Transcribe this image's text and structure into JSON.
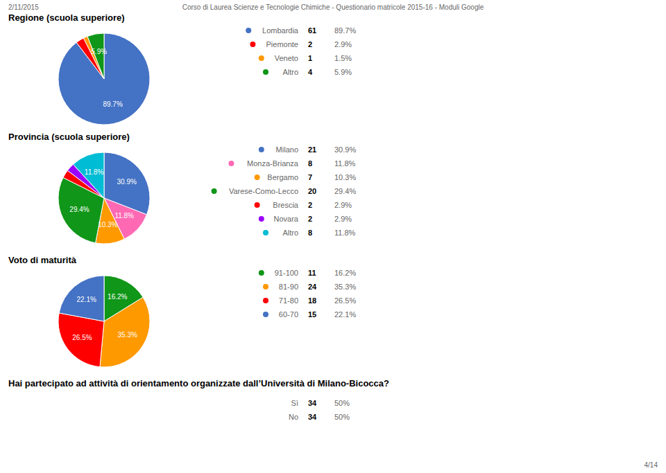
{
  "annotations": [
    "2/11/2015",
    "Corso di Laurea Scienze e Tecnologie Chimiche - Questionario matricole 2015-16 - Moduli Google",
    "4/14"
  ],
  "chart_data": [
    {
      "type": "pie",
      "title": "Regione (scuola superiore)",
      "categories": [
        "Lombardia",
        "Piemonte",
        "Veneto",
        "Altro"
      ],
      "values": [
        89.7,
        2.9,
        1.5,
        5.9
      ],
      "value_labels": [
        "89.7%",
        "2.9%",
        "1.5%",
        "5.9%"
      ],
      "counts": [
        61,
        2,
        1,
        4
      ],
      "colors": [
        "#4472c4",
        "#ff0000",
        "#ff9900",
        "#109618"
      ],
      "data_labels": true
    },
    {
      "type": "pie",
      "title": "Provincia (scuola superiore)",
      "categories": [
        "Milano",
        "Monza-Brianza",
        "Bergamo",
        "Varese-Como-Lecco",
        "Brescia",
        "Novara",
        "Altro"
      ],
      "values": [
        30.9,
        11.8,
        10.3,
        29.4,
        2.9,
        2.9,
        11.8
      ],
      "value_labels": [
        "30.9%",
        "11.8%",
        "10.3%",
        "29.4%",
        "2.9%",
        "2.9%",
        "11.8%"
      ],
      "counts": [
        21,
        8,
        7,
        20,
        2,
        2,
        8
      ],
      "colors": [
        "#4472c4",
        "#ff69b4",
        "#ff9900",
        "#109618",
        "#ff0000",
        "#9900ff",
        "#00bcd4"
      ],
      "data_labels": true
    },
    {
      "type": "pie",
      "title": "Voto di maturità",
      "categories": [
        "91-100",
        "81-90",
        "71-80",
        "60-70"
      ],
      "values": [
        16.2,
        35.3,
        26.5,
        22.1
      ],
      "value_labels": [
        "16.2%",
        "35.3%",
        "26.5%",
        "22.1%"
      ],
      "counts": [
        11,
        24,
        18,
        15
      ],
      "colors": [
        "#109618",
        "#ff9900",
        "#ff0000",
        "#4472c4"
      ],
      "data_labels": true
    },
    {
      "type": "table",
      "title": "Hai partecipato ad attività di orientamento organizzate dall’Università di Milano-Bicocca?",
      "categories": [
        "Sì",
        "No"
      ],
      "values": [
        50,
        50
      ],
      "value_labels": [
        "50%",
        "50%"
      ],
      "counts": [
        34,
        34
      ]
    }
  ]
}
